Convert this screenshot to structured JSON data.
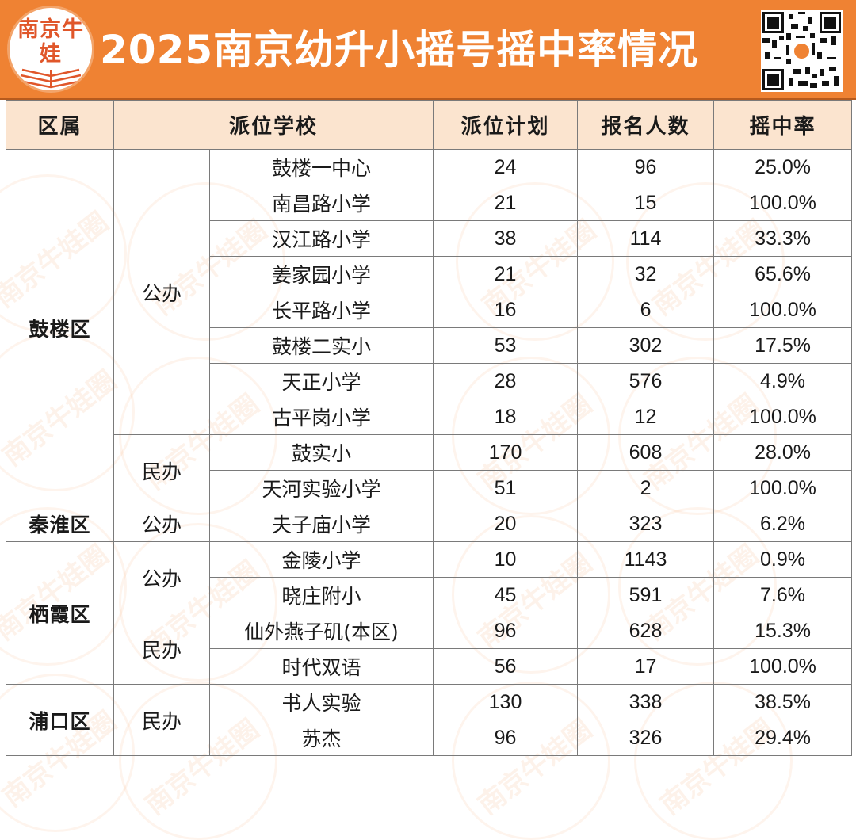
{
  "header": {
    "logo_text": "南京牛娃",
    "title": "2025南京幼升小摇号摇中率情况",
    "qr_icon": "qr-code-icon"
  },
  "watermark_text": "南京牛娃圈",
  "colors": {
    "brand": "#ef8233",
    "header_row": "#fbe4cf",
    "border": "#7a7a7a"
  },
  "table": {
    "headers": [
      "区属",
      "派位学校",
      "派位计划",
      "报名人数",
      "摇中率"
    ],
    "districts": [
      {
        "name": "鼓楼区",
        "types": [
          {
            "name": "公办",
            "schools": [
              {
                "name": "鼓楼一中心",
                "plan": "24",
                "applicants": "96",
                "rate": "25.0%"
              },
              {
                "name": "南昌路小学",
                "plan": "21",
                "applicants": "15",
                "rate": "100.0%"
              },
              {
                "name": "汉江路小学",
                "plan": "38",
                "applicants": "114",
                "rate": "33.3%"
              },
              {
                "name": "姜家园小学",
                "plan": "21",
                "applicants": "32",
                "rate": "65.6%"
              },
              {
                "name": "长平路小学",
                "plan": "16",
                "applicants": "6",
                "rate": "100.0%"
              },
              {
                "name": "鼓楼二实小",
                "plan": "53",
                "applicants": "302",
                "rate": "17.5%"
              },
              {
                "name": "天正小学",
                "plan": "28",
                "applicants": "576",
                "rate": "4.9%"
              },
              {
                "name": "古平岗小学",
                "plan": "18",
                "applicants": "12",
                "rate": "100.0%"
              }
            ]
          },
          {
            "name": "民办",
            "schools": [
              {
                "name": "鼓实小",
                "plan": "170",
                "applicants": "608",
                "rate": "28.0%"
              },
              {
                "name": "天河实验小学",
                "plan": "51",
                "applicants": "2",
                "rate": "100.0%"
              }
            ]
          }
        ]
      },
      {
        "name": "秦淮区",
        "types": [
          {
            "name": "公办",
            "schools": [
              {
                "name": "夫子庙小学",
                "plan": "20",
                "applicants": "323",
                "rate": "6.2%"
              }
            ]
          }
        ]
      },
      {
        "name": "栖霞区",
        "types": [
          {
            "name": "公办",
            "schools": [
              {
                "name": "金陵小学",
                "plan": "10",
                "applicants": "1143",
                "rate": "0.9%"
              },
              {
                "name": "晓庄附小",
                "plan": "45",
                "applicants": "591",
                "rate": "7.6%"
              }
            ]
          },
          {
            "name": "民办",
            "schools": [
              {
                "name": "仙外燕子矶(本区)",
                "plan": "96",
                "applicants": "628",
                "rate": "15.3%"
              },
              {
                "name": "时代双语",
                "plan": "56",
                "applicants": "17",
                "rate": "100.0%"
              }
            ]
          }
        ]
      },
      {
        "name": "浦口区",
        "types": [
          {
            "name": "民办",
            "schools": [
              {
                "name": "书人实验",
                "plan": "130",
                "applicants": "338",
                "rate": "38.5%"
              },
              {
                "name": "苏杰",
                "plan": "96",
                "applicants": "326",
                "rate": "29.4%"
              }
            ]
          }
        ]
      }
    ]
  }
}
